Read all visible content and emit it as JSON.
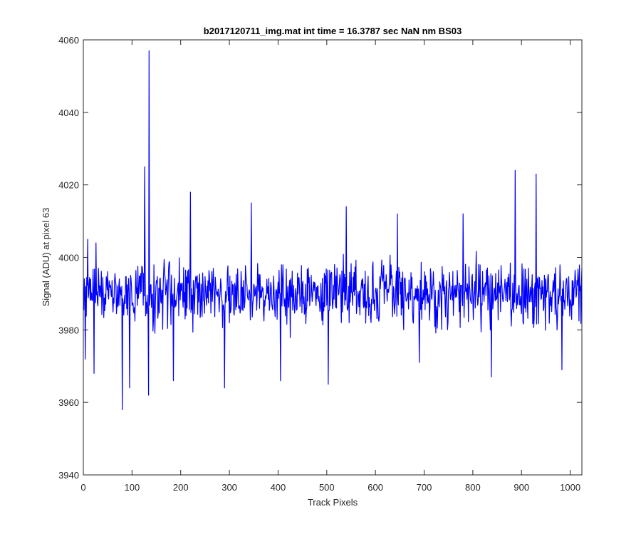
{
  "chart_data": {
    "type": "line",
    "title": "b2017120711_img.mat int time = 16.3787 sec  NaN nm BS03",
    "xlabel": "Track Pixels",
    "ylabel": "Signal (ADU) at pixel 63",
    "xlim": [
      0,
      1024
    ],
    "ylim": [
      3940,
      4060
    ],
    "xticks": [
      0,
      100,
      200,
      300,
      400,
      500,
      600,
      700,
      800,
      900,
      1000
    ],
    "yticks": [
      3940,
      3960,
      3980,
      4000,
      4020,
      4040,
      4060
    ],
    "grid": false,
    "series_color": "#0000ff",
    "n_points": 1024,
    "y_center": 3990,
    "y_noise_amplitude": 9,
    "notable_points": [
      {
        "x": 0,
        "y": 3990
      },
      {
        "x": 4,
        "y": 3972
      },
      {
        "x": 9,
        "y": 4005
      },
      {
        "x": 22,
        "y": 3968
      },
      {
        "x": 26,
        "y": 4004
      },
      {
        "x": 80,
        "y": 3958
      },
      {
        "x": 95,
        "y": 3964
      },
      {
        "x": 126,
        "y": 4025
      },
      {
        "x": 134,
        "y": 3962
      },
      {
        "x": 135,
        "y": 4057
      },
      {
        "x": 185,
        "y": 3966
      },
      {
        "x": 220,
        "y": 4018
      },
      {
        "x": 290,
        "y": 3964
      },
      {
        "x": 345,
        "y": 4015
      },
      {
        "x": 405,
        "y": 3966
      },
      {
        "x": 503,
        "y": 3965
      },
      {
        "x": 540,
        "y": 4014
      },
      {
        "x": 645,
        "y": 4012
      },
      {
        "x": 690,
        "y": 3971
      },
      {
        "x": 780,
        "y": 4012
      },
      {
        "x": 838,
        "y": 3967
      },
      {
        "x": 887,
        "y": 4024
      },
      {
        "x": 930,
        "y": 4023
      },
      {
        "x": 983,
        "y": 3969
      },
      {
        "x": 1024,
        "y": 3997
      }
    ]
  }
}
